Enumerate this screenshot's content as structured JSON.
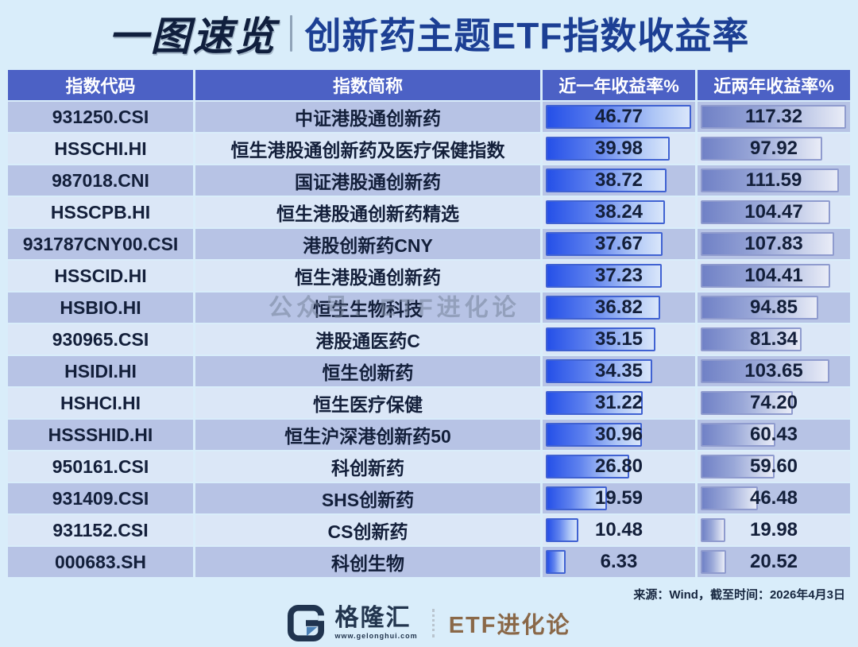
{
  "title": {
    "part1": "一图速览",
    "divider": "|",
    "part2": "创新药主题ETF指数收益率"
  },
  "watermark": "公众号：ETF进化论",
  "source_note": "来源：Wind，截至时间：2026年4月3日",
  "footer": {
    "logo_icon": "gelonghui-g-logo",
    "brand": "格隆汇",
    "brand_url": "www.gelonghui.com",
    "sub_brand": "ETF进化论"
  },
  "colors": {
    "page_bg": "#d9edfa",
    "title_part1": "#101f3d",
    "title_part2": "#1c3f94",
    "header_bg": "#4c61c5",
    "header_text": "#ffffff",
    "row_odd_bg": "#b7c3e5",
    "row_even_bg": "#dbe7f7",
    "cell_text": "#131f3a",
    "bar_1y_start": "#2550e8",
    "bar_1y_border": "#4062d2",
    "bar_2y_start": "#7081c6",
    "bar_2y_border": "#8f9bce",
    "sub_brand_text": "#8a6848"
  },
  "chart_data": {
    "type": "table",
    "title": "一图速览｜创新药主题ETF指数收益率",
    "columns": [
      "指数代码",
      "指数简称",
      "近一年收益率%",
      "近两年收益率%"
    ],
    "bar_axis": {
      "near_1y_max": 46.77,
      "near_2y_max": 117.32,
      "bar_note": "in-cell data bars, width proportional to value per column"
    },
    "rows": [
      {
        "code": "931250.CSI",
        "name": "中证港股通创新药",
        "y1": "46.77",
        "y2": "117.32"
      },
      {
        "code": "HSSCHI.HI",
        "name": "恒生港股通创新药及医疗保健指数",
        "y1": "39.98",
        "y2": "97.92"
      },
      {
        "code": "987018.CNI",
        "name": "国证港股通创新药",
        "y1": "38.72",
        "y2": "111.59"
      },
      {
        "code": "HSSCPB.HI",
        "name": "恒生港股通创新药精选",
        "y1": "38.24",
        "y2": "104.47"
      },
      {
        "code": "931787CNY00.CSI",
        "name": "港股创新药CNY",
        "y1": "37.67",
        "y2": "107.83"
      },
      {
        "code": "HSSCID.HI",
        "name": "恒生港股通创新药",
        "y1": "37.23",
        "y2": "104.41"
      },
      {
        "code": "HSBIO.HI",
        "name": "恒生生物科技",
        "y1": "36.82",
        "y2": "94.85"
      },
      {
        "code": "930965.CSI",
        "name": "港股通医药C",
        "y1": "35.15",
        "y2": "81.34"
      },
      {
        "code": "HSIDI.HI",
        "name": "恒生创新药",
        "y1": "34.35",
        "y2": "103.65"
      },
      {
        "code": "HSHCI.HI",
        "name": "恒生医疗保健",
        "y1": "31.22",
        "y2": "74.20"
      },
      {
        "code": "HSSSHID.HI",
        "name": "恒生沪深港创新药50",
        "y1": "30.96",
        "y2": "60.43"
      },
      {
        "code": "950161.CSI",
        "name": "科创新药",
        "y1": "26.80",
        "y2": "59.60"
      },
      {
        "code": "931409.CSI",
        "name": "SHS创新药",
        "y1": "19.59",
        "y2": "46.48"
      },
      {
        "code": "931152.CSI",
        "name": "CS创新药",
        "y1": "10.48",
        "y2": "19.98"
      },
      {
        "code": "000683.SH",
        "name": "科创生物",
        "y1": "6.33",
        "y2": "20.52"
      }
    ]
  }
}
